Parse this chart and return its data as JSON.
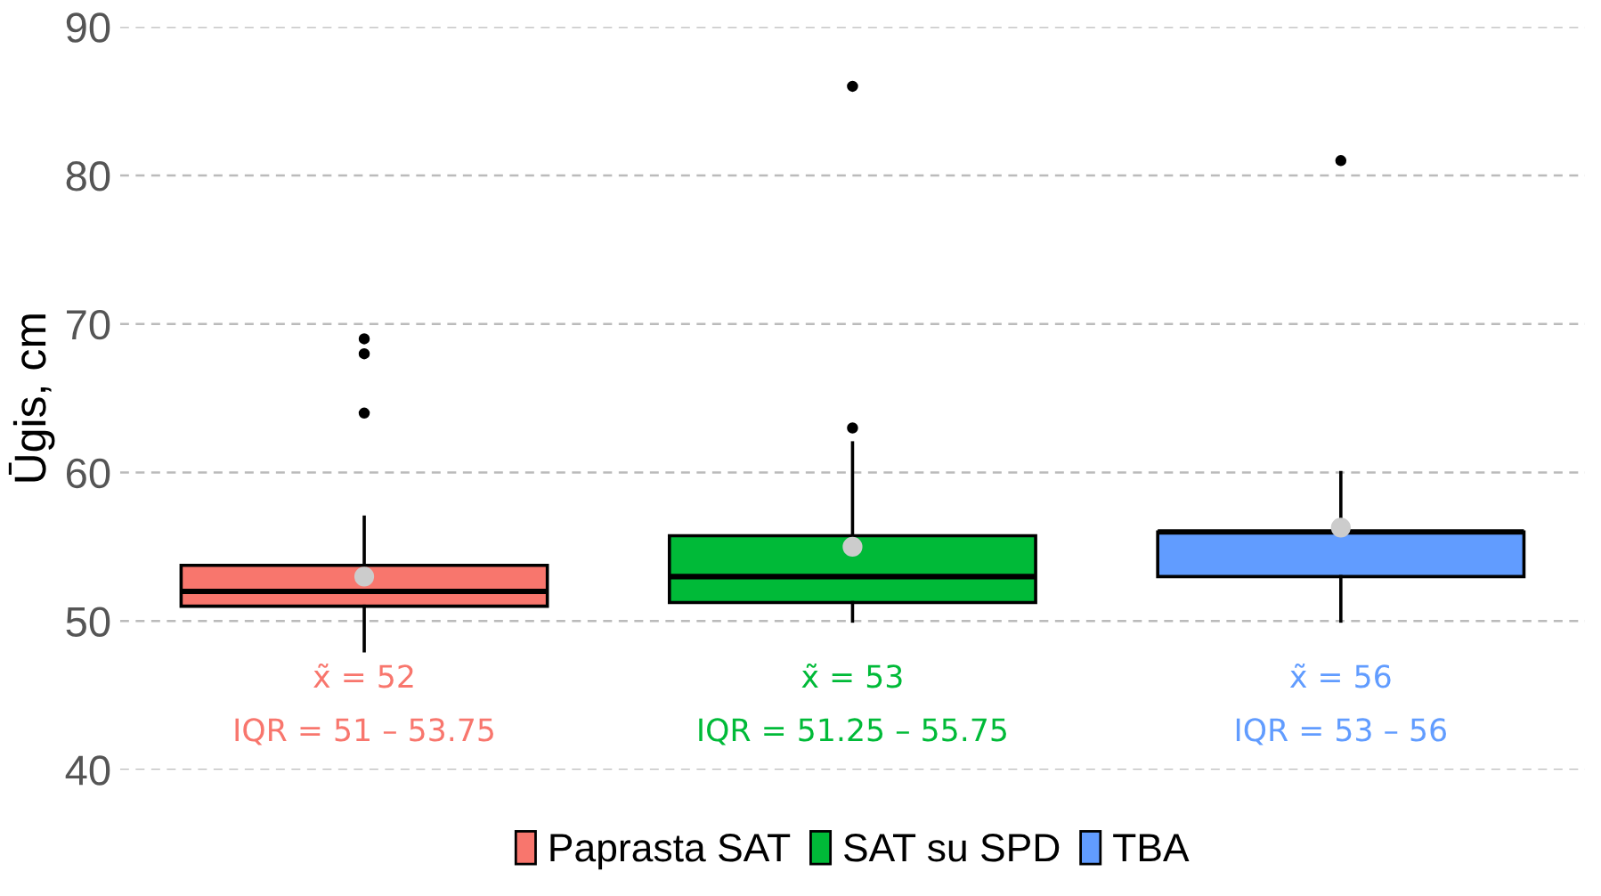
{
  "chart_data": {
    "type": "box",
    "ylabel": "Ūgis, cm",
    "categories": [
      null,
      null,
      null
    ],
    "series": [
      {
        "name": "Paprasta SAT",
        "color": "#f8766d",
        "boxes": [
          {
            "low": 48,
            "q1": 51,
            "median": 52,
            "q3": 53.75,
            "high": 57,
            "mean": 53,
            "outliers": [
              64,
              68,
              69
            ]
          },
          null,
          null
        ]
      },
      {
        "name": "SAT su SPD",
        "color": "#00ba38",
        "boxes": [
          null,
          {
            "low": 50,
            "q1": 51.25,
            "median": 53,
            "q3": 55.75,
            "high": 62,
            "mean": 55,
            "outliers": [
              63,
              86
            ]
          },
          null
        ]
      },
      {
        "name": "TBA",
        "color": "#619cff",
        "boxes": [
          null,
          null,
          {
            "low": 50,
            "q1": 53,
            "median": 56,
            "q3": 56,
            "high": 60,
            "mean": 56.3,
            "outliers": [
              81
            ]
          }
        ]
      }
    ],
    "annotations": [
      "x̃ = 52",
      "IQR = 51 – 53.75",
      "x̃ = 53",
      "IQR = 51.25 – 55.75",
      "x̃ = 56",
      "IQR = 53 – 56"
    ],
    "ylim": [
      40,
      90
    ],
    "yticks": [
      40,
      50,
      60,
      70,
      80,
      90
    ],
    "grid": "y",
    "legend": "bottom"
  }
}
